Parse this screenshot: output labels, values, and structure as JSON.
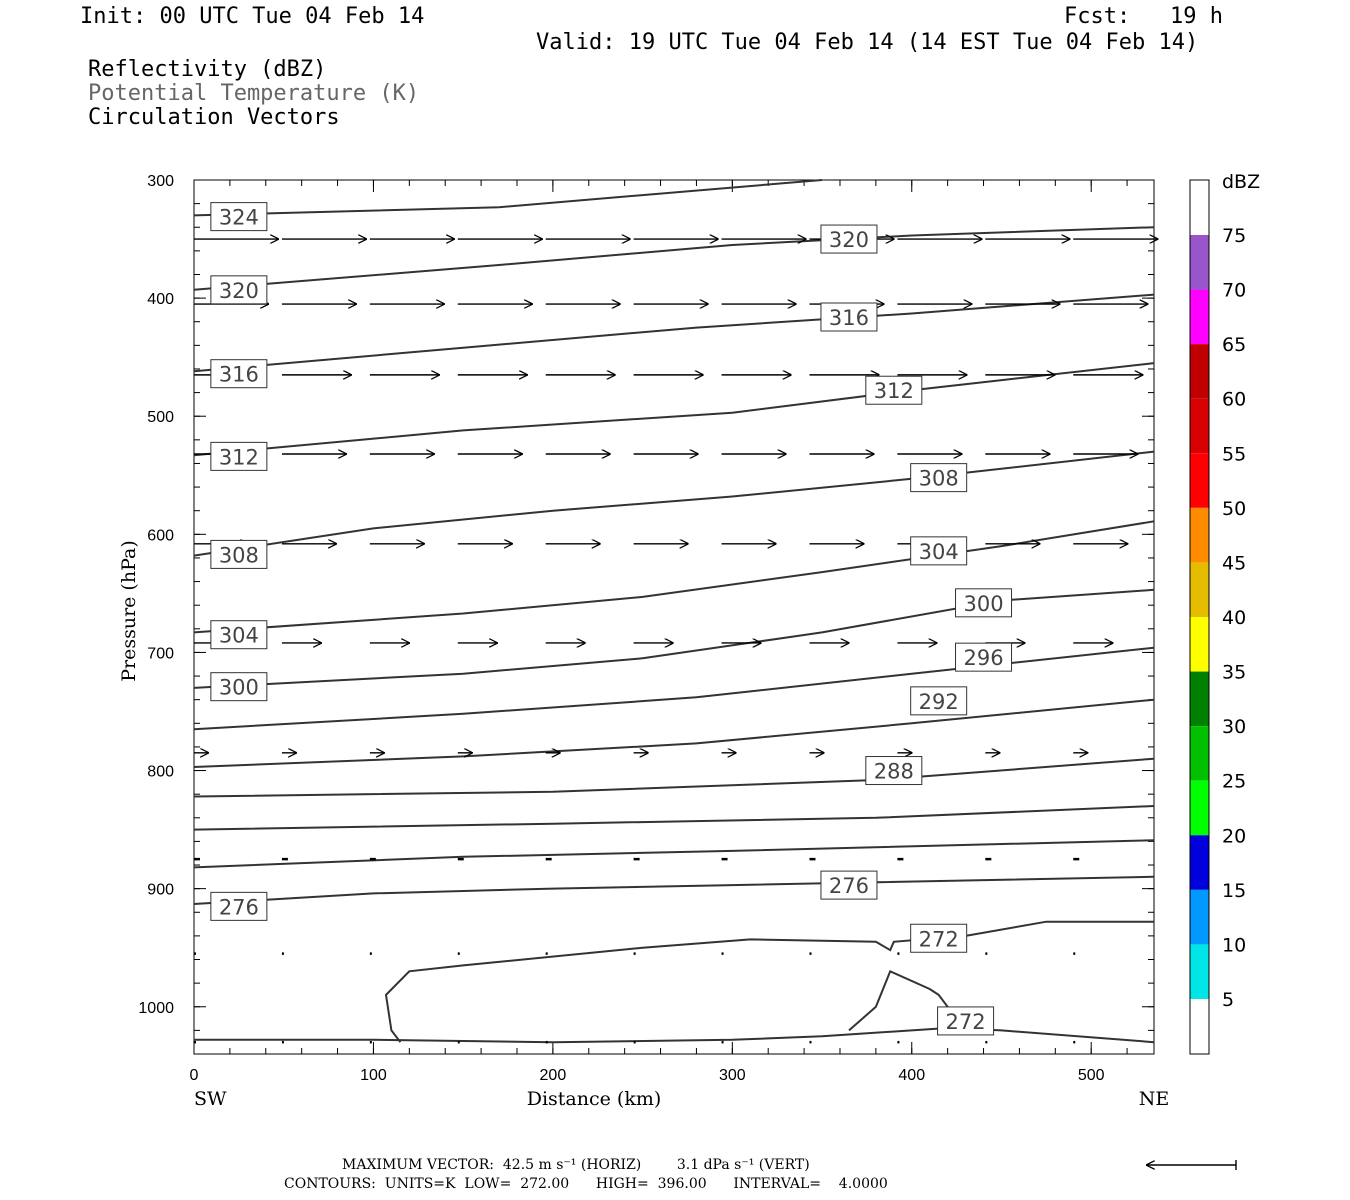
{
  "header": {
    "init": "Init: 00 UTC Tue 04 Feb 14",
    "fcst": "Fcst:   19 h",
    "valid": "Valid: 19 UTC Tue 04 Feb 14 (14 EST Tue 04 Feb 14)"
  },
  "fields": [
    "Reflectivity (dBZ)",
    "Potential Temperature (K)",
    "Circulation Vectors"
  ],
  "footer": {
    "max_vector": "MAXIMUM VECTOR:  42.5 m s⁻¹ (HORIZ)        3.1 dPa s⁻¹ (VERT)",
    "contours": "CONTOURS:  UNITS=K  LOW=  272.00      HIGH=  396.00      INTERVAL=    4.0000"
  },
  "chart_data": {
    "type": "line",
    "xlabel": "Distance (km)",
    "ylabel": "Pressure (hPa)",
    "xlim": [
      0,
      535
    ],
    "ylim": [
      300,
      1040
    ],
    "x_ticks": [
      0,
      100,
      200,
      300,
      400,
      500
    ],
    "y_ticks": [
      300,
      400,
      500,
      600,
      700,
      800,
      900,
      1000
    ],
    "y_inverted": true,
    "left_end_label": "SW",
    "right_end_label": "NE",
    "isentropes": [
      {
        "theta": 324,
        "points": [
          [
            0,
            330
          ],
          [
            170,
            323
          ],
          [
            350,
            300
          ]
        ]
      },
      {
        "theta": 320,
        "points": [
          [
            0,
            393
          ],
          [
            170,
            372
          ],
          [
            300,
            355
          ],
          [
            400,
            347
          ],
          [
            535,
            340
          ]
        ]
      },
      {
        "theta": 316,
        "points": [
          [
            0,
            462
          ],
          [
            150,
            442
          ],
          [
            280,
            425
          ],
          [
            400,
            413
          ],
          [
            535,
            397
          ]
        ]
      },
      {
        "theta": 312,
        "points": [
          [
            0,
            533
          ],
          [
            150,
            512
          ],
          [
            300,
            497
          ],
          [
            400,
            478
          ],
          [
            535,
            455
          ]
        ]
      },
      {
        "theta": 308,
        "points": [
          [
            0,
            618
          ],
          [
            100,
            595
          ],
          [
            200,
            580
          ],
          [
            300,
            568
          ],
          [
            400,
            553
          ],
          [
            535,
            530
          ]
        ]
      },
      {
        "theta": 304,
        "points": [
          [
            0,
            683
          ],
          [
            150,
            667
          ],
          [
            250,
            653
          ],
          [
            350,
            632
          ],
          [
            450,
            610
          ],
          [
            535,
            589
          ]
        ]
      },
      {
        "theta": 300,
        "points": [
          [
            0,
            730
          ],
          [
            150,
            718
          ],
          [
            250,
            705
          ],
          [
            350,
            683
          ],
          [
            450,
            656
          ],
          [
            535,
            647
          ]
        ]
      },
      {
        "theta": 296,
        "points": [
          [
            0,
            765
          ],
          [
            150,
            752
          ],
          [
            280,
            738
          ],
          [
            400,
            718
          ],
          [
            535,
            696
          ]
        ]
      },
      {
        "theta": 292,
        "points": [
          [
            0,
            797
          ],
          [
            150,
            788
          ],
          [
            280,
            777
          ],
          [
            400,
            760
          ],
          [
            535,
            740
          ]
        ]
      },
      {
        "theta": 288,
        "points": [
          [
            0,
            822
          ],
          [
            200,
            818
          ],
          [
            380,
            808
          ],
          [
            535,
            790
          ]
        ]
      },
      {
        "theta": 284,
        "points": [
          [
            0,
            850
          ],
          [
            200,
            845
          ],
          [
            380,
            840
          ],
          [
            535,
            830
          ]
        ]
      },
      {
        "theta": 280,
        "points": [
          [
            0,
            882
          ],
          [
            150,
            873
          ],
          [
            300,
            868
          ],
          [
            535,
            859
          ]
        ]
      },
      {
        "theta": 276,
        "points": [
          [
            0,
            913
          ],
          [
            100,
            904
          ],
          [
            200,
            900
          ],
          [
            300,
            897
          ],
          [
            535,
            890
          ]
        ]
      },
      {
        "theta": 272,
        "points": [
          [
            115,
            1030
          ],
          [
            110,
            1020
          ],
          [
            107,
            990
          ],
          [
            120,
            970
          ],
          [
            150,
            965
          ],
          [
            250,
            950
          ],
          [
            310,
            943
          ],
          [
            380,
            945
          ],
          [
            388,
            952
          ],
          [
            390,
            945
          ],
          [
            430,
            940
          ],
          [
            475,
            928
          ],
          [
            535,
            928
          ]
        ]
      },
      {
        "theta": 272,
        "points": [
          [
            365,
            1020
          ],
          [
            380,
            1000
          ],
          [
            388,
            970
          ],
          [
            410,
            985
          ],
          [
            415,
            990
          ],
          [
            420,
            1000
          ],
          [
            425,
            1015
          ]
        ]
      },
      {
        "theta": 272,
        "points": [
          [
            0,
            1028
          ],
          [
            100,
            1028
          ],
          [
            200,
            1030
          ],
          [
            300,
            1028
          ],
          [
            350,
            1025
          ],
          [
            420,
            1018
          ],
          [
            450,
            1020
          ],
          [
            535,
            1030
          ]
        ]
      }
    ],
    "contour_labels": [
      {
        "text": "324",
        "x": 25,
        "p": 331
      },
      {
        "text": "320",
        "x": 365,
        "p": 350
      },
      {
        "text": "320",
        "x": 25,
        "p": 393
      },
      {
        "text": "316",
        "x": 365,
        "p": 416
      },
      {
        "text": "316",
        "x": 25,
        "p": 464
      },
      {
        "text": "312",
        "x": 390,
        "p": 478
      },
      {
        "text": "312",
        "x": 25,
        "p": 534
      },
      {
        "text": "308",
        "x": 415,
        "p": 552
      },
      {
        "text": "308",
        "x": 25,
        "p": 617
      },
      {
        "text": "304",
        "x": 415,
        "p": 614
      },
      {
        "text": "304",
        "x": 25,
        "p": 685
      },
      {
        "text": "300",
        "x": 440,
        "p": 658
      },
      {
        "text": "300",
        "x": 25,
        "p": 729
      },
      {
        "text": "296",
        "x": 440,
        "p": 704
      },
      {
        "text": "292",
        "x": 415,
        "p": 741
      },
      {
        "text": "288",
        "x": 390,
        "p": 800
      },
      {
        "text": "276",
        "x": 365,
        "p": 897
      },
      {
        "text": "276",
        "x": 25,
        "p": 915
      },
      {
        "text": "272",
        "x": 415,
        "p": 942
      },
      {
        "text": "272",
        "x": 430,
        "p": 1012
      }
    ],
    "vector_levels": [
      350,
      405,
      465,
      532,
      608,
      692,
      785,
      875,
      955,
      1030
    ],
    "vector_lengths": [
      85,
      75,
      70,
      65,
      55,
      40,
      15,
      6,
      2,
      2
    ],
    "max_vector": {
      "horiz": 42.5,
      "horiz_units": "m s⁻¹",
      "vert": 3.1,
      "vert_units": "dPa s⁻¹"
    },
    "contours": {
      "units": "K",
      "low": 272.0,
      "high": 396.0,
      "interval": 4.0
    },
    "colorbar": {
      "units": "dBZ",
      "labels": [
        "75",
        "70",
        "65",
        "60",
        "55",
        "50",
        "45",
        "40",
        "35",
        "30",
        "25",
        "20",
        "15",
        "10",
        "5"
      ],
      "colors": [
        "#ffffff",
        "#9955cc",
        "#ff00ff",
        "#c00000",
        "#d80000",
        "#ff0000",
        "#ff8c00",
        "#e6bc00",
        "#ffff00",
        "#008000",
        "#00c000",
        "#00ff00",
        "#0000dd",
        "#0099ff",
        "#00e6e6",
        "#ffffff"
      ]
    }
  }
}
